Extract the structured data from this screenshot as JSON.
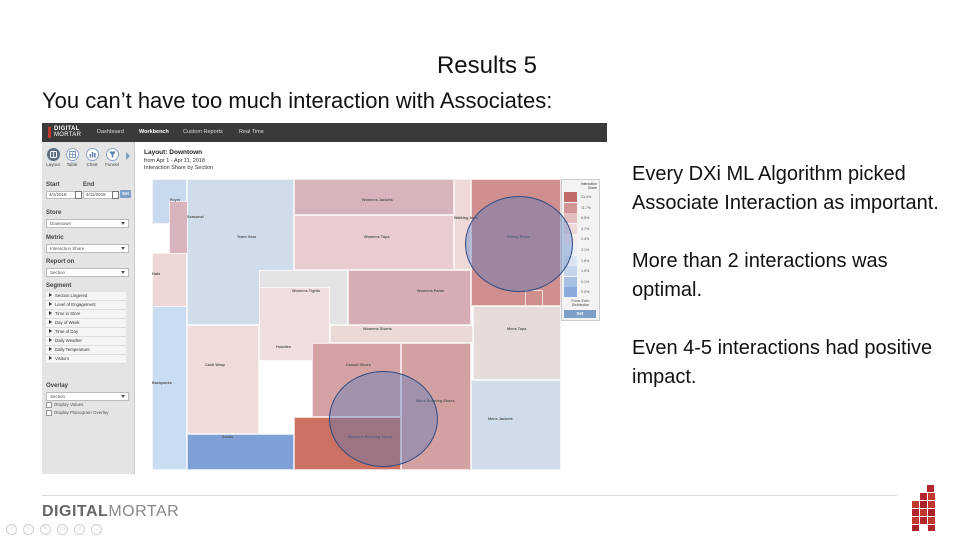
{
  "slide": {
    "title": "Results 5",
    "subtitle": "You can’t have too much interaction with Associates:",
    "notes": [
      "Every DXi ML Algorithm picked Associate Interaction as important.",
      "More than 2 interactions was optimal.",
      "Even 4-5 interactions had positive impact."
    ],
    "footer_brand_bold": "DIGITAL",
    "footer_brand_light": "MORTAR"
  },
  "app": {
    "logo_line1": "DIGITAL",
    "logo_line2": "MORTAR",
    "nav": [
      "Dashboard",
      "Workbench",
      "Custom Reports",
      "Real Time"
    ],
    "active_nav": "Workbench",
    "toolbar": [
      "Layout",
      "Table",
      "Chart",
      "Funnel"
    ],
    "sidebar": {
      "start_label": "Start",
      "end_label": "End",
      "start_value": "4/1/2018",
      "end_value": "4/11/2018",
      "set_label": "Set",
      "store_label": "Store",
      "store_value": "Downtown",
      "metric_label": "Metric",
      "metric_value": "Interaction Share",
      "report_label": "Report on",
      "report_value": "Section",
      "segment_label": "Segment",
      "segments": [
        "Section Lingered",
        "Level of Engagement",
        "Time in Store",
        "Day of Week",
        "Time of Day",
        "Daily Weather",
        "Daily Temperature",
        "Visitors"
      ],
      "overlay_label": "Overlay",
      "overlay_value": "Section",
      "display_values": "Display Values",
      "display_planogram": "Display Planogram Overlay"
    },
    "main": {
      "layout_title": "Layout: Downtown",
      "date_range": "from Apr 1 - Apr 11, 2018",
      "subtitle": "Interaction Share by Section"
    },
    "tiles": [
      {
        "label": "Foyer",
        "color": "#c9d9ee"
      },
      {
        "label": "Seasonal",
        "color": "#d9b4bd"
      },
      {
        "label": "Team Gear",
        "color": "#cfdcea"
      },
      {
        "label": "Womens Jackets",
        "color": "#d7b4bc"
      },
      {
        "label": "Womens Tops",
        "color": "#e8cccf"
      },
      {
        "label": "Walking Area",
        "color": "#eed8d8"
      },
      {
        "label": "Fitting Room",
        "color": "#d08f8f"
      },
      {
        "label": "Hats",
        "color": "#ecd7d6"
      },
      {
        "label": "Womens Tights",
        "color": "#e3e3e5"
      },
      {
        "label": "Womens Pants",
        "color": "#d7adb5"
      },
      {
        "label": "Womens Shorts",
        "color": "#ead9d7"
      },
      {
        "label": "Mens Tops",
        "color": "#e6dbd8"
      },
      {
        "label": "Hoodies",
        "color": "#efe0df"
      },
      {
        "label": "Cash Wrap",
        "color": "#eedbda"
      },
      {
        "label": "Casual Shoes",
        "color": "#d5a2a3"
      },
      {
        "label": "Mens Running Shoes",
        "color": "#d3a1a2"
      },
      {
        "label": "Backpacks",
        "color": "#c9dcf1"
      },
      {
        "label": "Mens Jackets",
        "color": "#cfdcea"
      },
      {
        "label": "Socks",
        "color": "#7fa0d6"
      },
      {
        "label": "Womens Running Shoes",
        "color": "#cc7262"
      }
    ],
    "legend": {
      "title_line1": "Interaction",
      "title_line2": "Share",
      "values": [
        "23.4%",
        "11.7%",
        "8.5%",
        "3.7%",
        "2.4%",
        "2.1%",
        "1.8%",
        "1.0%",
        "0.1%",
        "0.0%"
      ],
      "colors": [
        "#c06a6a",
        "#d19595",
        "#e3bebe",
        "#efd8d8",
        "#f6ecec",
        "#edf1f6",
        "#dbe5f1",
        "#c5d6ec",
        "#a9c1e4",
        "#8aaadb"
      ],
      "force_line1": "Force Even",
      "force_line2": "Distribution",
      "set_label": "Set"
    }
  }
}
